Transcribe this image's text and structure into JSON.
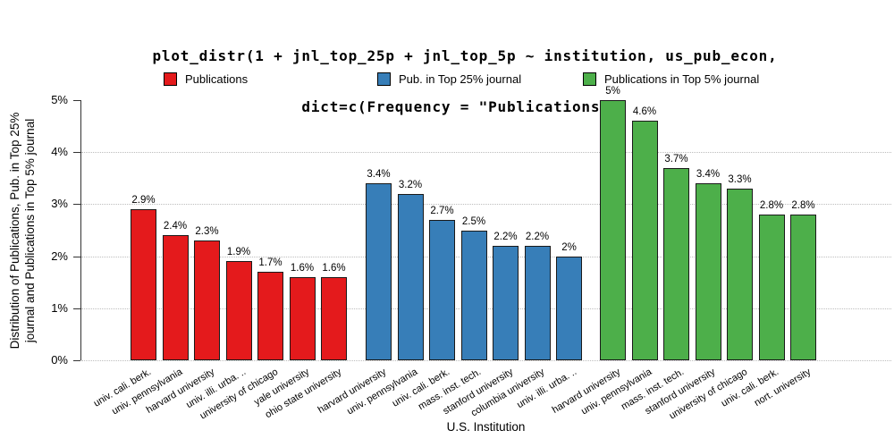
{
  "title": {
    "line1": "plot_distr(1 + jnl_top_25p + jnl_top_5p ~ institution, us_pub_econ,",
    "line2": "dict=c(Frequency = \"Publications\"))"
  },
  "y_axis": {
    "title_line1": "Distribution of Publications, Pub. in Top 25%",
    "title_line2": "journal and Publications in Top 5% journal",
    "ticks": [
      "0%",
      "1%",
      "2%",
      "3%",
      "4%",
      "5%"
    ]
  },
  "x_axis": {
    "title": "U.S. Institution"
  },
  "chart_data": {
    "type": "bar",
    "title": "plot_distr(1 + jnl_top_25p + jnl_top_5p ~ institution, us_pub_econ, dict=c(Frequency = \"Publications\"))",
    "xlabel": "U.S. Institution",
    "ylabel": "Distribution of Publications, Pub. in Top 25% journal and Publications in Top 5% journal",
    "ylim": [
      0,
      5
    ],
    "y_unit": "percent",
    "grid": "horizontal dotted lines at 0%-4%",
    "legend_position": "top",
    "series": [
      {
        "name": "Publications",
        "color": "#e41a1c",
        "categories": [
          "univ. cali. berk.",
          "univ. pennsylvania",
          "harvard university",
          "univ. illi. urba. ..",
          "university of chicago",
          "yale university",
          "ohio state university"
        ],
        "values": [
          2.9,
          2.4,
          2.3,
          1.9,
          1.7,
          1.6,
          1.6
        ],
        "value_labels": [
          "2.9%",
          "2.4%",
          "2.3%",
          "1.9%",
          "1.7%",
          "1.6%",
          "1.6%"
        ]
      },
      {
        "name": "Pub. in Top 25% journal",
        "color": "#377eb8",
        "categories": [
          "harvard university",
          "univ. pennsylvania",
          "univ. cali. berk.",
          "mass. inst. tech.",
          "stanford university",
          "columbia university",
          "univ. illi. urba. .."
        ],
        "values": [
          3.4,
          3.2,
          2.7,
          2.5,
          2.2,
          2.2,
          2.0
        ],
        "value_labels": [
          "3.4%",
          "3.2%",
          "2.7%",
          "2.5%",
          "2.2%",
          "2.2%",
          "2%"
        ]
      },
      {
        "name": "Publications in Top 5% journal",
        "color": "#4daf4a",
        "categories": [
          "harvard university",
          "univ. pennsylvania",
          "mass. inst. tech.",
          "stanford university",
          "university of chicago",
          "univ. cali. berk.",
          "nort. university"
        ],
        "values": [
          5.0,
          4.6,
          3.7,
          3.4,
          3.3,
          2.8,
          2.8
        ],
        "value_labels": [
          "5%",
          "4.6%",
          "3.7%",
          "3.4%",
          "3.3%",
          "2.8%",
          "2.8%"
        ]
      }
    ]
  }
}
